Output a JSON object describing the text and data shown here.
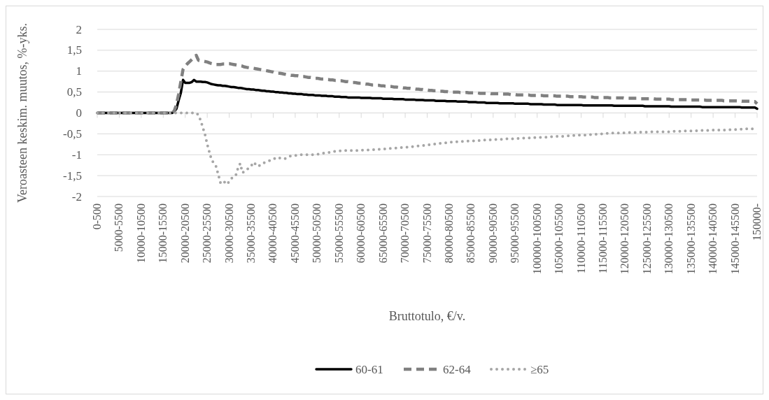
{
  "chart_data": {
    "type": "line",
    "xlabel": "Bruttotulo, €/v.",
    "ylabel": "Veroasteen keskim. muutos, %-yks.",
    "categories": [
      "0-500",
      null,
      null,
      null,
      null,
      null,
      null,
      null,
      null,
      null,
      "5000-5500",
      null,
      null,
      null,
      null,
      null,
      null,
      null,
      null,
      null,
      "10000-10500",
      null,
      null,
      null,
      null,
      null,
      null,
      null,
      null,
      null,
      "15000-15500",
      null,
      null,
      null,
      null,
      null,
      null,
      null,
      null,
      null,
      "20000-20500",
      null,
      null,
      null,
      null,
      null,
      null,
      null,
      null,
      null,
      "25000-25500",
      null,
      null,
      null,
      null,
      null,
      null,
      null,
      null,
      null,
      "30000-30500",
      null,
      null,
      null,
      null,
      null,
      null,
      null,
      null,
      null,
      "35000-35500",
      null,
      null,
      null,
      null,
      null,
      null,
      null,
      null,
      null,
      "40000-40500",
      null,
      null,
      null,
      null,
      null,
      null,
      null,
      null,
      null,
      "45000-45500",
      null,
      null,
      null,
      null,
      null,
      null,
      null,
      null,
      null,
      "50000-50500",
      null,
      null,
      null,
      null,
      null,
      null,
      null,
      null,
      null,
      "55000-55500",
      null,
      null,
      null,
      null,
      null,
      null,
      null,
      null,
      null,
      "60000-60500",
      null,
      null,
      null,
      null,
      null,
      null,
      null,
      null,
      null,
      "65000-65500",
      null,
      null,
      null,
      null,
      null,
      null,
      null,
      null,
      null,
      "70000-70500",
      null,
      null,
      null,
      null,
      null,
      null,
      null,
      null,
      null,
      "75000-75500",
      null,
      null,
      null,
      null,
      null,
      null,
      null,
      null,
      null,
      "80000-80500",
      null,
      null,
      null,
      null,
      null,
      null,
      null,
      null,
      null,
      "85000-85500",
      null,
      null,
      null,
      null,
      null,
      null,
      null,
      null,
      null,
      "90000-90500",
      null,
      null,
      null,
      null,
      null,
      null,
      null,
      null,
      null,
      "95000-95500",
      null,
      null,
      null,
      null,
      null,
      null,
      null,
      null,
      null,
      "100000-100500",
      null,
      null,
      null,
      null,
      null,
      null,
      null,
      null,
      null,
      "105000-105500",
      null,
      null,
      null,
      null,
      null,
      null,
      null,
      null,
      null,
      "110000-110500",
      null,
      null,
      null,
      null,
      null,
      null,
      null,
      null,
      null,
      "115000-115500",
      null,
      null,
      null,
      null,
      null,
      null,
      null,
      null,
      null,
      "120000-120500",
      null,
      null,
      null,
      null,
      null,
      null,
      null,
      null,
      null,
      "125000-125500",
      null,
      null,
      null,
      null,
      null,
      null,
      null,
      null,
      null,
      "130000-130500",
      null,
      null,
      null,
      null,
      null,
      null,
      null,
      null,
      null,
      "135000-135500",
      null,
      null,
      null,
      null,
      null,
      null,
      null,
      null,
      null,
      "140000-140500",
      null,
      null,
      null,
      null,
      null,
      null,
      null,
      null,
      null,
      "145000-145500",
      null,
      null,
      null,
      null,
      null,
      null,
      null,
      null,
      null,
      "150000-"
    ],
    "ylim": [
      -2,
      2
    ],
    "yticks": [
      {
        "value": -2,
        "label": "-2"
      },
      {
        "value": -1.5,
        "label": "-1,5"
      },
      {
        "value": -1,
        "label": "-1"
      },
      {
        "value": -0.5,
        "label": "-0,5"
      },
      {
        "value": 0,
        "label": "0"
      },
      {
        "value": 0.5,
        "label": "0,5"
      },
      {
        "value": 1,
        "label": "1"
      },
      {
        "value": 1.5,
        "label": "1,5"
      },
      {
        "value": 2,
        "label": "2"
      }
    ],
    "grid": "y",
    "legend": "bottom",
    "series": [
      {
        "name": "60-61",
        "color": "#000000",
        "line_style": "solid",
        "values": [
          0,
          0,
          0,
          0,
          0,
          0,
          0,
          0,
          0,
          0,
          0,
          0,
          0,
          0,
          0,
          0,
          0,
          0,
          0,
          0,
          0,
          0,
          0,
          0,
          0,
          0,
          0,
          0,
          0,
          0,
          0,
          0,
          0,
          0,
          0,
          0.03,
          0.1,
          0.3,
          0.48,
          0.79,
          0.72,
          0.72,
          0.72,
          0.74,
          0.79,
          0.75,
          0.75,
          0.75,
          0.74,
          0.74,
          0.73,
          0.71,
          0.69,
          0.68,
          0.67,
          0.66,
          0.66,
          0.65,
          0.65,
          0.64,
          0.63,
          0.62,
          0.62,
          0.61,
          0.6,
          0.6,
          0.59,
          0.58,
          0.57,
          0.57,
          0.56,
          0.56,
          0.55,
          0.55,
          0.54,
          0.53,
          0.53,
          0.52,
          0.52,
          0.51,
          0.51,
          0.5,
          0.5,
          0.49,
          0.49,
          0.48,
          0.48,
          0.47,
          0.47,
          0.46,
          0.46,
          0.45,
          0.45,
          0.45,
          0.44,
          0.44,
          0.43,
          0.43,
          0.43,
          0.42,
          0.42,
          0.42,
          0.41,
          0.41,
          0.41,
          0.4,
          0.4,
          0.4,
          0.39,
          0.39,
          0.39,
          0.38,
          0.38,
          0.38,
          0.37,
          0.37,
          0.37,
          0.37,
          0.37,
          0.37,
          0.36,
          0.36,
          0.36,
          0.36,
          0.36,
          0.35,
          0.35,
          0.35,
          0.35,
          0.35,
          0.34,
          0.34,
          0.34,
          0.34,
          0.34,
          0.33,
          0.33,
          0.33,
          0.33,
          0.33,
          0.32,
          0.32,
          0.32,
          0.32,
          0.32,
          0.31,
          0.31,
          0.31,
          0.31,
          0.3,
          0.3,
          0.3,
          0.3,
          0.3,
          0.29,
          0.29,
          0.29,
          0.29,
          0.29,
          0.28,
          0.28,
          0.28,
          0.28,
          0.28,
          0.27,
          0.27,
          0.27,
          0.27,
          0.27,
          0.26,
          0.26,
          0.26,
          0.26,
          0.25,
          0.25,
          0.25,
          0.25,
          0.24,
          0.24,
          0.24,
          0.24,
          0.24,
          0.24,
          0.23,
          0.23,
          0.23,
          0.23,
          0.23,
          0.23,
          0.23,
          0.22,
          0.22,
          0.22,
          0.22,
          0.22,
          0.22,
          0.22,
          0.21,
          0.21,
          0.21,
          0.21,
          0.21,
          0.21,
          0.2,
          0.2,
          0.2,
          0.2,
          0.2,
          0.2,
          0.19,
          0.19,
          0.19,
          0.19,
          0.19,
          0.19,
          0.19,
          0.19,
          0.19,
          0.19,
          0.19,
          0.19,
          0.18,
          0.18,
          0.18,
          0.18,
          0.18,
          0.18,
          0.18,
          0.18,
          0.18,
          0.18,
          0.18,
          0.18,
          0.18,
          0.18,
          0.17,
          0.17,
          0.17,
          0.17,
          0.17,
          0.17,
          0.17,
          0.17,
          0.17,
          0.17,
          0.17,
          0.17,
          0.17,
          0.17,
          0.16,
          0.16,
          0.16,
          0.16,
          0.16,
          0.16,
          0.16,
          0.16,
          0.16,
          0.16,
          0.16,
          0.16,
          0.15,
          0.15,
          0.15,
          0.15,
          0.15,
          0.15,
          0.15,
          0.15,
          0.15,
          0.15,
          0.15,
          0.15,
          0.15,
          0.15,
          0.14,
          0.14,
          0.14,
          0.14,
          0.14,
          0.14,
          0.14,
          0.14,
          0.14,
          0.14,
          0.14,
          0.14,
          0.14,
          0.14,
          0.14,
          0.14,
          0.14,
          0.14,
          0.13,
          0.13,
          0.13,
          0.13,
          0.13,
          0.13,
          0.13,
          0.1
        ]
      },
      {
        "name": "62-64",
        "color": "#808080",
        "line_style": "dashed",
        "values": [
          0,
          0,
          0,
          0,
          0,
          0,
          0,
          0,
          0,
          0,
          0,
          0,
          0,
          0,
          0,
          0,
          0,
          0,
          0,
          0,
          0,
          0,
          0,
          0,
          0,
          0,
          0,
          0,
          0,
          0,
          0,
          0,
          0,
          0,
          0,
          0.05,
          0.2,
          0.45,
          0.75,
          1.04,
          1.12,
          1.18,
          1.23,
          1.28,
          1.33,
          1.38,
          1.26,
          1.25,
          1.24,
          1.23,
          1.22,
          1.2,
          1.18,
          1.17,
          1.16,
          1.16,
          1.16,
          1.17,
          1.17,
          1.18,
          1.18,
          1.17,
          1.16,
          1.15,
          1.14,
          1.13,
          1.12,
          1.1,
          1.09,
          1.08,
          1.08,
          1.07,
          1.06,
          1.05,
          1.04,
          1.03,
          1.02,
          1.01,
          1,
          0.99,
          0.98,
          0.96,
          0.95,
          0.95,
          0.94,
          0.93,
          0.92,
          0.91,
          0.9,
          0.9,
          0.89,
          0.89,
          0.88,
          0.87,
          0.87,
          0.86,
          0.85,
          0.85,
          0.84,
          0.83,
          0.83,
          0.82,
          0.81,
          0.81,
          0.8,
          0.8,
          0.79,
          0.79,
          0.78,
          0.78,
          0.77,
          0.77,
          0.76,
          0.75,
          0.75,
          0.74,
          0.73,
          0.73,
          0.72,
          0.71,
          0.71,
          0.7,
          0.69,
          0.69,
          0.68,
          0.67,
          0.67,
          0.66,
          0.66,
          0.65,
          0.65,
          0.64,
          0.64,
          0.63,
          0.63,
          0.62,
          0.62,
          0.61,
          0.61,
          0.6,
          0.6,
          0.59,
          0.59,
          0.58,
          0.58,
          0.57,
          0.57,
          0.56,
          0.56,
          0.55,
          0.55,
          0.54,
          0.54,
          0.53,
          0.53,
          0.52,
          0.52,
          0.52,
          0.51,
          0.51,
          0.5,
          0.5,
          0.5,
          0.5,
          0.5,
          0.49,
          0.49,
          0.49,
          0.49,
          0.48,
          0.48,
          0.48,
          0.48,
          0.48,
          0.47,
          0.47,
          0.47,
          0.47,
          0.47,
          0.46,
          0.46,
          0.46,
          0.46,
          0.46,
          0.45,
          0.45,
          0.45,
          0.45,
          0.44,
          0.44,
          0.44,
          0.43,
          0.43,
          0.43,
          0.43,
          0.43,
          0.43,
          0.42,
          0.42,
          0.42,
          0.42,
          0.42,
          0.42,
          0.41,
          0.41,
          0.41,
          0.41,
          0.41,
          0.41,
          0.4,
          0.4,
          0.4,
          0.4,
          0.4,
          0.4,
          0.39,
          0.39,
          0.39,
          0.39,
          0.39,
          0.39,
          0.38,
          0.38,
          0.38,
          0.38,
          0.38,
          0.37,
          0.37,
          0.37,
          0.37,
          0.37,
          0.37,
          0.37,
          0.36,
          0.36,
          0.36,
          0.36,
          0.36,
          0.36,
          0.36,
          0.35,
          0.35,
          0.35,
          0.35,
          0.35,
          0.35,
          0.35,
          0.34,
          0.34,
          0.34,
          0.34,
          0.34,
          0.34,
          0.34,
          0.33,
          0.33,
          0.33,
          0.33,
          0.33,
          0.33,
          0.33,
          0.32,
          0.32,
          0.32,
          0.32,
          0.32,
          0.32,
          0.32,
          0.32,
          0.31,
          0.31,
          0.31,
          0.31,
          0.31,
          0.31,
          0.31,
          0.31,
          0.3,
          0.3,
          0.3,
          0.3,
          0.3,
          0.3,
          0.3,
          0.3,
          0.29,
          0.29,
          0.29,
          0.29,
          0.29,
          0.29,
          0.29,
          0.29,
          0.28,
          0.28,
          0.28,
          0.28,
          0.28,
          0.27,
          0.27,
          0.22
        ]
      },
      {
        "name": "≥65",
        "color": "#a6a6a6",
        "line_style": "dotted",
        "values": [
          0,
          0,
          0,
          0,
          0,
          0,
          0,
          0,
          0,
          0,
          0,
          0,
          0,
          0,
          0,
          0,
          0,
          0,
          0,
          0,
          0,
          0,
          0,
          0,
          0,
          0,
          0,
          0,
          0,
          0,
          0,
          0,
          0,
          0,
          0,
          0,
          0,
          0,
          0,
          0,
          0,
          0,
          0,
          0,
          0,
          0,
          -0.05,
          -0.18,
          -0.35,
          -0.52,
          -0.75,
          -0.94,
          -1.13,
          -1.2,
          -1.28,
          -1.47,
          -1.67,
          -1.62,
          -1.66,
          -1.71,
          -1.64,
          -1.57,
          -1.53,
          -1.49,
          -1.32,
          -1.21,
          -1.43,
          -1.4,
          -1.36,
          -1.31,
          -1.27,
          -1.18,
          -1.23,
          -1.28,
          -1.25,
          -1.21,
          -1.19,
          -1.17,
          -1.15,
          -1.13,
          -1.11,
          -1.08,
          -1.06,
          -1.08,
          -1.09,
          -1.1,
          -1.08,
          -1.05,
          -1.03,
          -1.02,
          -1.02,
          -1.01,
          -1,
          -1,
          -1,
          -1,
          -1,
          -1,
          -1,
          -0.99,
          -0.99,
          -0.98,
          -0.97,
          -0.96,
          -0.95,
          -0.95,
          -0.94,
          -0.93,
          -0.92,
          -0.92,
          -0.91,
          -0.91,
          -0.91,
          -0.9,
          -0.9,
          -0.9,
          -0.9,
          -0.9,
          -0.9,
          -0.89,
          -0.89,
          -0.89,
          -0.89,
          -0.89,
          -0.88,
          -0.88,
          -0.88,
          -0.87,
          -0.87,
          -0.86,
          -0.86,
          -0.86,
          -0.85,
          -0.85,
          -0.84,
          -0.84,
          -0.84,
          -0.83,
          -0.83,
          -0.83,
          -0.82,
          -0.82,
          -0.81,
          -0.81,
          -0.8,
          -0.8,
          -0.79,
          -0.78,
          -0.78,
          -0.77,
          -0.76,
          -0.76,
          -0.75,
          -0.75,
          -0.74,
          -0.73,
          -0.73,
          -0.72,
          -0.72,
          -0.71,
          -0.71,
          -0.7,
          -0.7,
          -0.69,
          -0.69,
          -0.69,
          -0.68,
          -0.68,
          -0.68,
          -0.67,
          -0.67,
          -0.67,
          -0.66,
          -0.66,
          -0.66,
          -0.66,
          -0.65,
          -0.65,
          -0.65,
          -0.64,
          -0.64,
          -0.64,
          -0.63,
          -0.63,
          -0.63,
          -0.62,
          -0.62,
          -0.62,
          -0.62,
          -0.62,
          -0.61,
          -0.61,
          -0.61,
          -0.61,
          -0.6,
          -0.6,
          -0.6,
          -0.6,
          -0.59,
          -0.59,
          -0.59,
          -0.59,
          -0.58,
          -0.58,
          -0.58,
          -0.57,
          -0.57,
          -0.57,
          -0.56,
          -0.56,
          -0.56,
          -0.56,
          -0.56,
          -0.55,
          -0.55,
          -0.55,
          -0.54,
          -0.54,
          -0.54,
          -0.53,
          -0.53,
          -0.53,
          -0.53,
          -0.52,
          -0.52,
          -0.52,
          -0.51,
          -0.51,
          -0.51,
          -0.5,
          -0.5,
          -0.5,
          -0.49,
          -0.49,
          -0.48,
          -0.48,
          -0.48,
          -0.48,
          -0.48,
          -0.48,
          -0.47,
          -0.47,
          -0.47,
          -0.47,
          -0.47,
          -0.47,
          -0.46,
          -0.46,
          -0.46,
          -0.46,
          -0.46,
          -0.46,
          -0.45,
          -0.45,
          -0.45,
          -0.45,
          -0.45,
          -0.45,
          -0.45,
          -0.45,
          -0.45,
          -0.44,
          -0.44,
          -0.44,
          -0.44,
          -0.44,
          -0.44,
          -0.43,
          -0.43,
          -0.43,
          -0.43,
          -0.43,
          -0.43,
          -0.42,
          -0.42,
          -0.42,
          -0.42,
          -0.42,
          -0.42,
          -0.41,
          -0.41,
          -0.41,
          -0.41,
          -0.41,
          -0.41,
          -0.41,
          -0.4,
          -0.4,
          -0.4,
          -0.4,
          -0.4,
          -0.39,
          -0.39,
          -0.39,
          -0.39,
          -0.38,
          -0.38,
          -0.38,
          -0.38,
          -0.37,
          -0.37
        ]
      }
    ]
  }
}
